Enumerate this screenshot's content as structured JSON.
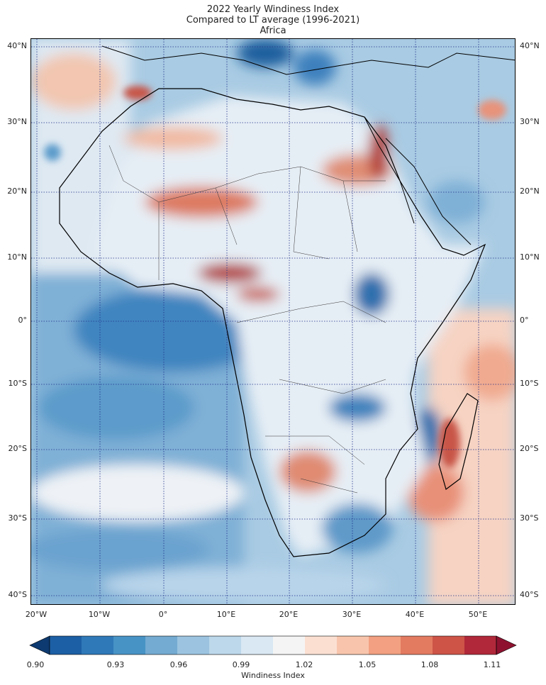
{
  "title": {
    "line1": "2022 Yearly Windiness Index",
    "line2": "Compared to LT average (1996-2021)",
    "line3": "Africa"
  },
  "lat_labels": [
    "40°N",
    "30°N",
    "20°N",
    "10°N",
    "0°",
    "10°S",
    "20°S",
    "30°S",
    "40°S"
  ],
  "lon_labels": [
    "20°W",
    "10°W",
    "0°",
    "10°E",
    "20°E",
    "30°E",
    "40°E",
    "50°E"
  ],
  "colorbar": {
    "label": "Windiness Index",
    "ticks": [
      "0.90",
      "0.93",
      "0.96",
      "0.99",
      "1.02",
      "1.05",
      "1.08",
      "1.11"
    ],
    "colors": [
      "#0d3a70",
      "#1c5fa5",
      "#2f79b8",
      "#4793c6",
      "#74abd2",
      "#9cc4e0",
      "#bcd8ea",
      "#d9e8f3",
      "#f4f4f4",
      "#fbe0d2",
      "#f8c5ac",
      "#f2a081",
      "#e37b60",
      "#cd5447",
      "#b1283a",
      "#8e1230"
    ]
  },
  "colors": {
    "ocean_base": "#9cc4e0",
    "land_base": "#e8eef4",
    "coast": "#000000",
    "grid": "#1f2f8a"
  }
}
